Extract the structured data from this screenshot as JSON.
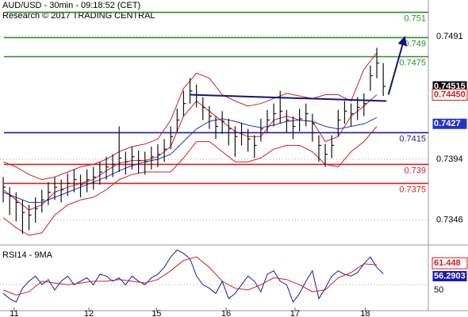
{
  "chart_data": [
    {
      "type": "ohlc",
      "title": "AUD/USD - 30min - 09:18:52 (CET)",
      "subtitle": "Research © 2017 TRADING CENTRAL",
      "xlim": [
        -0.5,
        66
      ],
      "ylim": [
        0.7329,
        0.75197
      ],
      "yticks": [
        0.7346,
        0.7394,
        0.7491
      ],
      "bar_color": "#111111",
      "high": [
        0.738,
        0.7372,
        0.7368,
        0.7362,
        0.7358,
        0.7364,
        0.737,
        0.7376,
        0.738,
        0.7378,
        0.7383,
        0.7386,
        0.7382,
        0.7386,
        0.7388,
        0.7392,
        0.7396,
        0.7398,
        0.742,
        0.74,
        0.7404,
        0.7401,
        0.74,
        0.7404,
        0.7406,
        0.741,
        0.742,
        0.7434,
        0.7448,
        0.7458,
        0.7453,
        0.7443,
        0.7436,
        0.7428,
        0.7432,
        0.7426,
        0.742,
        0.7423,
        0.7418,
        0.7413,
        0.7426,
        0.7433,
        0.7438,
        0.7448,
        0.7433,
        0.7428,
        0.7434,
        0.7438,
        0.743,
        0.7413,
        0.7406,
        0.7413,
        0.7433,
        0.744,
        0.7438,
        0.7443,
        0.7446,
        0.7468,
        0.7482,
        0.747
      ],
      "low": [
        0.736,
        0.735,
        0.7345,
        0.7335,
        0.7338,
        0.7344,
        0.7352,
        0.7358,
        0.7362,
        0.736,
        0.7365,
        0.7368,
        0.7364,
        0.7368,
        0.737,
        0.7374,
        0.7378,
        0.738,
        0.7384,
        0.7382,
        0.7386,
        0.7383,
        0.7382,
        0.7386,
        0.7388,
        0.7392,
        0.7402,
        0.7415,
        0.7428,
        0.7438,
        0.7435,
        0.7425,
        0.7418,
        0.741,
        0.7414,
        0.7405,
        0.7396,
        0.7405,
        0.74,
        0.7395,
        0.7408,
        0.7415,
        0.742,
        0.7422,
        0.7415,
        0.741,
        0.7416,
        0.742,
        0.7408,
        0.7392,
        0.7388,
        0.7395,
        0.7412,
        0.7422,
        0.742,
        0.7425,
        0.7428,
        0.7448,
        0.7458,
        0.7444
      ],
      "close": [
        0.7372,
        0.7365,
        0.736,
        0.7352,
        0.735,
        0.7355,
        0.7362,
        0.7368,
        0.7372,
        0.737,
        0.7375,
        0.7378,
        0.7374,
        0.7378,
        0.738,
        0.7384,
        0.7388,
        0.739,
        0.7395,
        0.7392,
        0.7396,
        0.7393,
        0.7392,
        0.7396,
        0.7398,
        0.7402,
        0.7412,
        0.7425,
        0.7438,
        0.7448,
        0.7445,
        0.7435,
        0.7428,
        0.742,
        0.7424,
        0.7418,
        0.7412,
        0.7415,
        0.741,
        0.7405,
        0.7418,
        0.7425,
        0.743,
        0.7432,
        0.7425,
        0.742,
        0.7426,
        0.743,
        0.7422,
        0.7405,
        0.7398,
        0.7405,
        0.7425,
        0.7432,
        0.743,
        0.7435,
        0.7438,
        0.746,
        0.747,
        0.74515
      ],
      "overlay_x": [
        0,
        2,
        4,
        6,
        8,
        10,
        12,
        14,
        16,
        18,
        20,
        22,
        24,
        26,
        28,
        30,
        32,
        34,
        36,
        38,
        40,
        42,
        44,
        46,
        48,
        50,
        52,
        54,
        56,
        58
      ],
      "overlays": [
        {
          "color": "#cc2222",
          "values": [
            0.7392,
            0.7388,
            0.7382,
            0.7378,
            0.738,
            0.7384,
            0.7388,
            0.739,
            0.7394,
            0.74,
            0.7404,
            0.7406,
            0.741,
            0.7425,
            0.745,
            0.7462,
            0.7458,
            0.7445,
            0.744,
            0.7436,
            0.7438,
            0.7442,
            0.7446,
            0.7444,
            0.7442,
            0.7445,
            0.7445,
            0.744,
            0.7465,
            0.7478
          ]
        },
        {
          "color": "#cc2222",
          "values": [
            0.7348,
            0.734,
            0.7334,
            0.7336,
            0.735,
            0.7358,
            0.7362,
            0.7364,
            0.737,
            0.7378,
            0.7382,
            0.7384,
            0.7384,
            0.7384,
            0.7395,
            0.7408,
            0.7408,
            0.74,
            0.7392,
            0.7392,
            0.7395,
            0.7402,
            0.7405,
            0.7405,
            0.74,
            0.739,
            0.7388,
            0.74,
            0.7408,
            0.742
          ]
        },
        {
          "color": "#cc2222",
          "values": [
            0.737,
            0.7362,
            0.7354,
            0.7358,
            0.7368,
            0.7372,
            0.7375,
            0.7378,
            0.7385,
            0.7391,
            0.7393,
            0.7393,
            0.7396,
            0.7404,
            0.7428,
            0.744,
            0.7432,
            0.7424,
            0.7416,
            0.7412,
            0.7412,
            0.7425,
            0.7428,
            0.7425,
            0.7424,
            0.7408,
            0.7412,
            0.7428,
            0.7436,
            0.7445
          ],
          "value_labels": [
            null,
            null,
            null,
            null,
            null,
            null,
            null,
            null,
            null,
            null,
            null,
            null,
            null,
            null,
            null,
            null,
            null,
            null,
            null,
            null,
            null,
            null,
            null,
            null,
            null,
            null,
            null,
            null,
            null,
            "0.74450"
          ]
        },
        {
          "color": "#2233cc",
          "values": [
            0.7368,
            0.7364,
            0.736,
            0.736,
            0.7364,
            0.7368,
            0.7372,
            0.7376,
            0.738,
            0.7385,
            0.7389,
            0.7392,
            0.7394,
            0.7398,
            0.7408,
            0.7418,
            0.7424,
            0.7426,
            0.7424,
            0.7421,
            0.7419,
            0.7421,
            0.7424,
            0.7425,
            0.7424,
            0.742,
            0.7418,
            0.742,
            0.7422,
            0.7427
          ]
        }
      ],
      "levels": [
        {
          "value": 0.751,
          "color": "#2e8b2e"
        },
        {
          "value": 0.749,
          "color": "#2e8b2e"
        },
        {
          "value": 0.7475,
          "color": "#2e8b2e"
        },
        {
          "value": 0.7415,
          "color": "#1a1aaa"
        },
        {
          "value": 0.739,
          "color": "#d62020"
        },
        {
          "value": 0.7375,
          "color": "#d62020"
        }
      ],
      "trendline": {
        "color": "#14147a",
        "x": [
          29,
          59.5
        ],
        "values": [
          0.7445,
          0.744
        ]
      },
      "arrow": {
        "color": "#14147a",
        "x": [
          59.8,
          62.3
        ],
        "values": [
          0.7445,
          0.749
        ]
      }
    },
    {
      "type": "line",
      "title": "RSI14 - 9MA",
      "xlim": [
        -0.5,
        66
      ],
      "ylim": [
        36,
        72
      ],
      "yticks": [
        50
      ],
      "xticks": [
        {
          "value": 1.7,
          "label": "11"
        },
        {
          "value": 13.3,
          "label": "12"
        },
        {
          "value": 23.8,
          "label": "15"
        },
        {
          "value": 34.6,
          "label": "16"
        },
        {
          "value": 45.3,
          "label": "17"
        },
        {
          "value": 56.2,
          "label": "18"
        }
      ],
      "series": [
        {
          "color": "#1a1aaa",
          "x_step": 1,
          "values": [
            45,
            42,
            40,
            48,
            52,
            55,
            50,
            53,
            47,
            52,
            55,
            50,
            52,
            54,
            50,
            56,
            55,
            52,
            54,
            50,
            55,
            52,
            50,
            54,
            56,
            60,
            66,
            70,
            68,
            65,
            55,
            50,
            48,
            45,
            52,
            42,
            45,
            50,
            55,
            52,
            46,
            56,
            58,
            52,
            50,
            40,
            45,
            52,
            58,
            42,
            48,
            55,
            58,
            56,
            55,
            57,
            62,
            66,
            60,
            56.2903
          ]
        },
        {
          "color": "#cc2222",
          "x_step": 2,
          "values": [
            47,
            44,
            46,
            52,
            51,
            50,
            51,
            52,
            52,
            53,
            52,
            51,
            53,
            58,
            64,
            66,
            60,
            52,
            48,
            47,
            50,
            54,
            53,
            50,
            46,
            47,
            54,
            57,
            62,
            61.448
          ]
        }
      ]
    }
  ]
}
